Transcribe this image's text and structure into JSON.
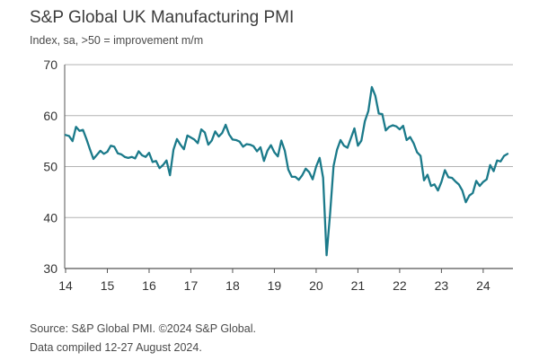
{
  "header": {
    "title": "S&P Global UK Manufacturing PMI",
    "subtitle": "Index, sa, >50 = improvement m/m"
  },
  "footer": {
    "source_line1": "Source: S&P Global PMI. ©2024 S&P Global.",
    "source_line2": "Data compiled 12-27 August 2024."
  },
  "colors": {
    "series": "#1b7a8a",
    "grid": "#b3b3b3",
    "axis": "#555555",
    "text": "#333333"
  },
  "chart_data": {
    "type": "line",
    "title": "S&P Global UK Manufacturing PMI",
    "subtitle": "Index, sa, >50 = improvement m/m",
    "xlabel": "",
    "ylabel": "",
    "ylim": [
      30,
      70
    ],
    "yticks": [
      30,
      40,
      50,
      60,
      70
    ],
    "xticks": [
      "14",
      "15",
      "16",
      "17",
      "18",
      "19",
      "20",
      "21",
      "22",
      "23",
      "24"
    ],
    "grid": "horizontal",
    "series": [
      {
        "x": [
          "2014-01",
          "2014-02",
          "2014-03",
          "2014-04",
          "2014-05",
          "2014-06",
          "2014-07",
          "2014-08",
          "2014-09",
          "2014-10",
          "2014-11",
          "2014-12",
          "2015-01",
          "2015-02",
          "2015-03",
          "2015-04",
          "2015-05",
          "2015-06",
          "2015-07",
          "2015-08",
          "2015-09",
          "2015-10",
          "2015-11",
          "2015-12",
          "2016-01",
          "2016-02",
          "2016-03",
          "2016-04",
          "2016-05",
          "2016-06",
          "2016-07",
          "2016-08",
          "2016-09",
          "2016-10",
          "2016-11",
          "2016-12",
          "2017-01",
          "2017-02",
          "2017-03",
          "2017-04",
          "2017-05",
          "2017-06",
          "2017-07",
          "2017-08",
          "2017-09",
          "2017-10",
          "2017-11",
          "2017-12",
          "2018-01",
          "2018-02",
          "2018-03",
          "2018-04",
          "2018-05",
          "2018-06",
          "2018-07",
          "2018-08",
          "2018-09",
          "2018-10",
          "2018-11",
          "2018-12",
          "2019-01",
          "2019-02",
          "2019-03",
          "2019-04",
          "2019-05",
          "2019-06",
          "2019-07",
          "2019-08",
          "2019-09",
          "2019-10",
          "2019-11",
          "2019-12",
          "2020-01",
          "2020-02",
          "2020-03",
          "2020-04",
          "2020-05",
          "2020-06",
          "2020-07",
          "2020-08",
          "2020-09",
          "2020-10",
          "2020-11",
          "2020-12",
          "2021-01",
          "2021-02",
          "2021-03",
          "2021-04",
          "2021-05",
          "2021-06",
          "2021-07",
          "2021-08",
          "2021-09",
          "2021-10",
          "2021-11",
          "2021-12",
          "2022-01",
          "2022-02",
          "2022-03",
          "2022-04",
          "2022-05",
          "2022-06",
          "2022-07",
          "2022-08",
          "2022-09",
          "2022-10",
          "2022-11",
          "2022-12",
          "2023-01",
          "2023-02",
          "2023-03",
          "2023-04",
          "2023-05",
          "2023-06",
          "2023-07",
          "2023-08",
          "2023-09",
          "2023-10",
          "2023-11",
          "2023-12",
          "2024-01",
          "2024-02",
          "2024-03",
          "2024-04",
          "2024-05",
          "2024-06",
          "2024-07",
          "2024-08"
        ],
        "values": [
          56.2,
          56.0,
          55.0,
          57.8,
          57.0,
          57.2,
          55.4,
          53.4,
          51.5,
          52.3,
          53.1,
          52.5,
          52.9,
          54.1,
          53.9,
          52.6,
          52.4,
          51.9,
          51.7,
          51.9,
          51.6,
          53.0,
          52.2,
          51.9,
          52.7,
          50.9,
          51.1,
          49.7,
          50.3,
          51.2,
          48.3,
          53.3,
          55.4,
          54.3,
          53.4,
          56.1,
          55.7,
          55.3,
          54.6,
          57.3,
          56.7,
          54.3,
          55.1,
          56.9,
          55.9,
          56.6,
          58.2,
          56.3,
          55.3,
          55.2,
          54.9,
          53.9,
          54.4,
          54.3,
          54.0,
          53.0,
          53.8,
          51.1,
          53.1,
          54.2,
          52.8,
          52.0,
          55.1,
          53.1,
          49.4,
          48.0,
          48.0,
          47.4,
          48.3,
          49.6,
          48.9,
          47.5,
          50.0,
          51.7,
          47.8,
          32.6,
          40.7,
          50.1,
          53.3,
          55.2,
          54.1,
          53.7,
          55.6,
          57.5,
          54.1,
          55.1,
          58.9,
          60.9,
          65.6,
          63.9,
          60.4,
          60.3,
          57.1,
          57.8,
          58.1,
          57.9,
          57.3,
          58.0,
          55.2,
          55.8,
          54.6,
          52.8,
          52.1,
          47.3,
          48.4,
          46.2,
          46.5,
          45.3,
          47.0,
          49.3,
          47.9,
          47.8,
          47.1,
          46.5,
          45.3,
          43.0,
          44.3,
          44.8,
          47.2,
          46.2,
          47.0,
          47.5,
          50.3,
          49.1,
          51.2,
          51.0,
          52.1,
          52.5
        ]
      }
    ]
  }
}
